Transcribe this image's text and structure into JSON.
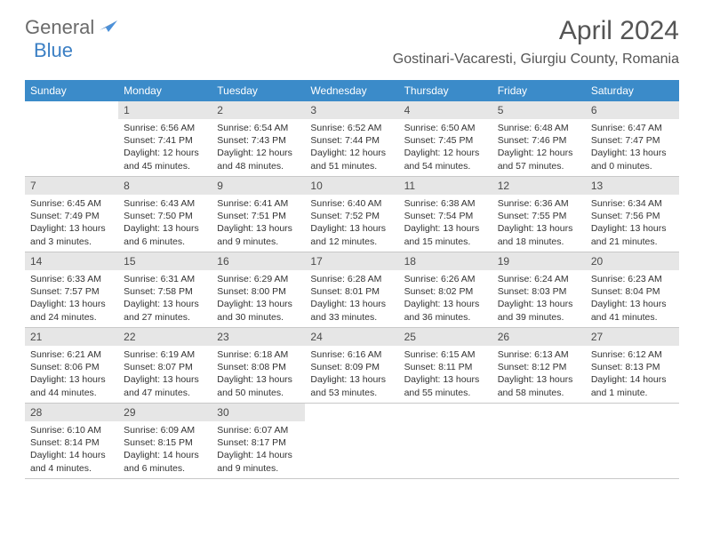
{
  "logo": {
    "text1": "General",
    "text2": "Blue"
  },
  "title": "April 2024",
  "location": "Gostinari-Vacaresti, Giurgiu County, Romania",
  "colors": {
    "header_bg": "#3b8bc9",
    "header_text": "#ffffff",
    "daynum_bg": "#e6e6e6",
    "daynum_text": "#4a4a4a",
    "body_text": "#333333",
    "logo_gray": "#6b6b6b",
    "logo_blue": "#3b7fc4",
    "divider": "#c8c8c8"
  },
  "day_names": [
    "Sunday",
    "Monday",
    "Tuesday",
    "Wednesday",
    "Thursday",
    "Friday",
    "Saturday"
  ],
  "weeks": [
    [
      {
        "n": "",
        "sr": "",
        "ss": "",
        "dl": ""
      },
      {
        "n": "1",
        "sr": "Sunrise: 6:56 AM",
        "ss": "Sunset: 7:41 PM",
        "dl": "Daylight: 12 hours and 45 minutes."
      },
      {
        "n": "2",
        "sr": "Sunrise: 6:54 AM",
        "ss": "Sunset: 7:43 PM",
        "dl": "Daylight: 12 hours and 48 minutes."
      },
      {
        "n": "3",
        "sr": "Sunrise: 6:52 AM",
        "ss": "Sunset: 7:44 PM",
        "dl": "Daylight: 12 hours and 51 minutes."
      },
      {
        "n": "4",
        "sr": "Sunrise: 6:50 AM",
        "ss": "Sunset: 7:45 PM",
        "dl": "Daylight: 12 hours and 54 minutes."
      },
      {
        "n": "5",
        "sr": "Sunrise: 6:48 AM",
        "ss": "Sunset: 7:46 PM",
        "dl": "Daylight: 12 hours and 57 minutes."
      },
      {
        "n": "6",
        "sr": "Sunrise: 6:47 AM",
        "ss": "Sunset: 7:47 PM",
        "dl": "Daylight: 13 hours and 0 minutes."
      }
    ],
    [
      {
        "n": "7",
        "sr": "Sunrise: 6:45 AM",
        "ss": "Sunset: 7:49 PM",
        "dl": "Daylight: 13 hours and 3 minutes."
      },
      {
        "n": "8",
        "sr": "Sunrise: 6:43 AM",
        "ss": "Sunset: 7:50 PM",
        "dl": "Daylight: 13 hours and 6 minutes."
      },
      {
        "n": "9",
        "sr": "Sunrise: 6:41 AM",
        "ss": "Sunset: 7:51 PM",
        "dl": "Daylight: 13 hours and 9 minutes."
      },
      {
        "n": "10",
        "sr": "Sunrise: 6:40 AM",
        "ss": "Sunset: 7:52 PM",
        "dl": "Daylight: 13 hours and 12 minutes."
      },
      {
        "n": "11",
        "sr": "Sunrise: 6:38 AM",
        "ss": "Sunset: 7:54 PM",
        "dl": "Daylight: 13 hours and 15 minutes."
      },
      {
        "n": "12",
        "sr": "Sunrise: 6:36 AM",
        "ss": "Sunset: 7:55 PM",
        "dl": "Daylight: 13 hours and 18 minutes."
      },
      {
        "n": "13",
        "sr": "Sunrise: 6:34 AM",
        "ss": "Sunset: 7:56 PM",
        "dl": "Daylight: 13 hours and 21 minutes."
      }
    ],
    [
      {
        "n": "14",
        "sr": "Sunrise: 6:33 AM",
        "ss": "Sunset: 7:57 PM",
        "dl": "Daylight: 13 hours and 24 minutes."
      },
      {
        "n": "15",
        "sr": "Sunrise: 6:31 AM",
        "ss": "Sunset: 7:58 PM",
        "dl": "Daylight: 13 hours and 27 minutes."
      },
      {
        "n": "16",
        "sr": "Sunrise: 6:29 AM",
        "ss": "Sunset: 8:00 PM",
        "dl": "Daylight: 13 hours and 30 minutes."
      },
      {
        "n": "17",
        "sr": "Sunrise: 6:28 AM",
        "ss": "Sunset: 8:01 PM",
        "dl": "Daylight: 13 hours and 33 minutes."
      },
      {
        "n": "18",
        "sr": "Sunrise: 6:26 AM",
        "ss": "Sunset: 8:02 PM",
        "dl": "Daylight: 13 hours and 36 minutes."
      },
      {
        "n": "19",
        "sr": "Sunrise: 6:24 AM",
        "ss": "Sunset: 8:03 PM",
        "dl": "Daylight: 13 hours and 39 minutes."
      },
      {
        "n": "20",
        "sr": "Sunrise: 6:23 AM",
        "ss": "Sunset: 8:04 PM",
        "dl": "Daylight: 13 hours and 41 minutes."
      }
    ],
    [
      {
        "n": "21",
        "sr": "Sunrise: 6:21 AM",
        "ss": "Sunset: 8:06 PM",
        "dl": "Daylight: 13 hours and 44 minutes."
      },
      {
        "n": "22",
        "sr": "Sunrise: 6:19 AM",
        "ss": "Sunset: 8:07 PM",
        "dl": "Daylight: 13 hours and 47 minutes."
      },
      {
        "n": "23",
        "sr": "Sunrise: 6:18 AM",
        "ss": "Sunset: 8:08 PM",
        "dl": "Daylight: 13 hours and 50 minutes."
      },
      {
        "n": "24",
        "sr": "Sunrise: 6:16 AM",
        "ss": "Sunset: 8:09 PM",
        "dl": "Daylight: 13 hours and 53 minutes."
      },
      {
        "n": "25",
        "sr": "Sunrise: 6:15 AM",
        "ss": "Sunset: 8:11 PM",
        "dl": "Daylight: 13 hours and 55 minutes."
      },
      {
        "n": "26",
        "sr": "Sunrise: 6:13 AM",
        "ss": "Sunset: 8:12 PM",
        "dl": "Daylight: 13 hours and 58 minutes."
      },
      {
        "n": "27",
        "sr": "Sunrise: 6:12 AM",
        "ss": "Sunset: 8:13 PM",
        "dl": "Daylight: 14 hours and 1 minute."
      }
    ],
    [
      {
        "n": "28",
        "sr": "Sunrise: 6:10 AM",
        "ss": "Sunset: 8:14 PM",
        "dl": "Daylight: 14 hours and 4 minutes."
      },
      {
        "n": "29",
        "sr": "Sunrise: 6:09 AM",
        "ss": "Sunset: 8:15 PM",
        "dl": "Daylight: 14 hours and 6 minutes."
      },
      {
        "n": "30",
        "sr": "Sunrise: 6:07 AM",
        "ss": "Sunset: 8:17 PM",
        "dl": "Daylight: 14 hours and 9 minutes."
      },
      {
        "n": "",
        "sr": "",
        "ss": "",
        "dl": ""
      },
      {
        "n": "",
        "sr": "",
        "ss": "",
        "dl": ""
      },
      {
        "n": "",
        "sr": "",
        "ss": "",
        "dl": ""
      },
      {
        "n": "",
        "sr": "",
        "ss": "",
        "dl": ""
      }
    ]
  ]
}
